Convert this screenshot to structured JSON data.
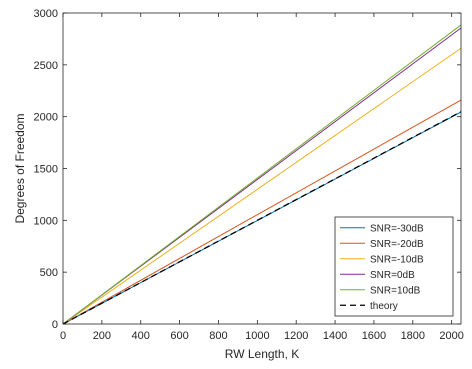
{
  "chart_data": {
    "type": "line",
    "title": "",
    "xlabel": "RW Length, K",
    "ylabel": "Degrees of Freedom",
    "xlim": [
      0,
      2048
    ],
    "ylim": [
      0,
      3000
    ],
    "xticks": [
      0,
      200,
      400,
      600,
      800,
      1000,
      1200,
      1400,
      1600,
      1800,
      2000
    ],
    "yticks": [
      0,
      500,
      1000,
      1500,
      2000,
      2500,
      3000
    ],
    "grid": false,
    "legend_position": "bottom-right",
    "series": [
      {
        "name": "SNR=-30dB",
        "color": "#0072BD",
        "dash": "solid",
        "x": [
          0,
          2048
        ],
        "y": [
          0,
          2045
        ]
      },
      {
        "name": "SNR=-20dB",
        "color": "#D95319",
        "dash": "solid",
        "x": [
          0,
          2048
        ],
        "y": [
          0,
          2160
        ]
      },
      {
        "name": "SNR=-10dB",
        "color": "#EDB120",
        "dash": "solid",
        "x": [
          0,
          2048
        ],
        "y": [
          0,
          2660
        ]
      },
      {
        "name": "SNR=0dB",
        "color": "#7E2F8E",
        "dash": "solid",
        "x": [
          0,
          2048
        ],
        "y": [
          0,
          2855
        ]
      },
      {
        "name": "SNR=10dB",
        "color": "#77AC30",
        "dash": "solid",
        "x": [
          0,
          2048
        ],
        "y": [
          0,
          2885
        ]
      },
      {
        "name": "theory",
        "color": "#000000",
        "dash": "dashed",
        "x": [
          0,
          2048
        ],
        "y": [
          0,
          2048
        ]
      }
    ]
  }
}
